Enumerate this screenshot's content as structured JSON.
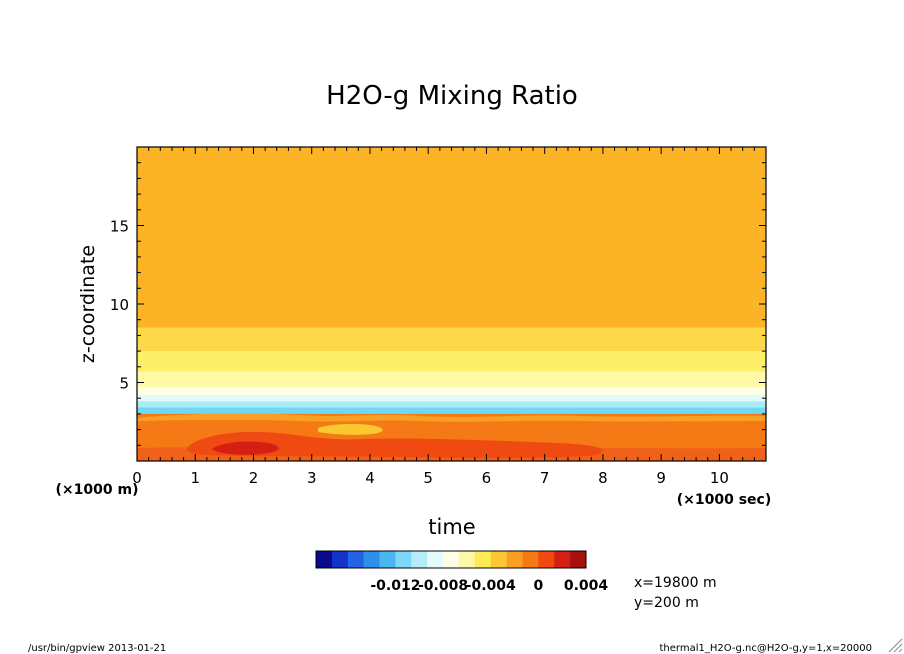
{
  "chart_data": {
    "type": "heatmap",
    "title": "H2O-g Mixing Ratio",
    "xlabel": "time",
    "ylabel": "z-coordinate",
    "x_unit_label": "(×1000 sec)",
    "y_unit_label": "(×1000 m)",
    "xlim": [
      0,
      10.8
    ],
    "ylim": [
      0,
      20
    ],
    "x_ticks": [
      "0",
      "1",
      "2",
      "3",
      "4",
      "5",
      "6",
      "7",
      "8",
      "9",
      "10"
    ],
    "y_ticks": [
      "5",
      "10",
      "15"
    ],
    "colorbar": {
      "colors": [
        "#0a0a8c",
        "#1532c8",
        "#2462e6",
        "#2f8fea",
        "#49b6f2",
        "#7dd8f6",
        "#b4edf8",
        "#e6fbfb",
        "#fffde6",
        "#fff6a8",
        "#fdeb55",
        "#fcc831",
        "#f8a024",
        "#f57a16",
        "#ee4a12",
        "#d41f12",
        "#a8100c"
      ],
      "boundaries": [
        -0.016,
        -0.014,
        -0.012,
        -0.01,
        -0.008,
        -0.006,
        -0.004,
        -0.002,
        0,
        0.002,
        0.004
      ],
      "labels": [
        "-0.012",
        "-0.008",
        "-0.004",
        "0",
        "0.004"
      ]
    },
    "bands": [
      {
        "z0": 8.5,
        "z1": 20,
        "color": "#fcb426"
      },
      {
        "z0": 7.0,
        "z1": 8.5,
        "color": "#fdd94a"
      },
      {
        "z0": 5.7,
        "z1": 7.0,
        "color": "#fdef68"
      },
      {
        "z0": 4.7,
        "z1": 5.7,
        "color": "#fffaa8"
      },
      {
        "z0": 4.2,
        "z1": 4.7,
        "color": "#ffffe6"
      },
      {
        "z0": 3.8,
        "z1": 4.2,
        "color": "#e2fafa"
      },
      {
        "z0": 3.4,
        "z1": 3.8,
        "color": "#a7ecf8"
      },
      {
        "z0": 3.0,
        "z1": 3.4,
        "color": "#6fd8f4"
      },
      {
        "z0": 0,
        "z1": 3.0,
        "color": "#f57a16"
      }
    ],
    "features": [
      {
        "name": "surface-band",
        "color": "#f0621a"
      },
      {
        "name": "moist-core",
        "color": "#ee4a12"
      },
      {
        "name": "moist-peak",
        "color": "#d41f12"
      },
      {
        "name": "dry-pocket",
        "color": "#fcc831"
      },
      {
        "name": "mixed-layer-top",
        "color": "#f8a024"
      }
    ]
  },
  "info": {
    "x_line": "x=19800 m",
    "y_line": "y=200 m"
  },
  "footer": {
    "left": "/usr/bin/gpview 2013-01-21",
    "right": "thermal1_H2O-g.nc@H2O-g,y=1,x=20000"
  }
}
